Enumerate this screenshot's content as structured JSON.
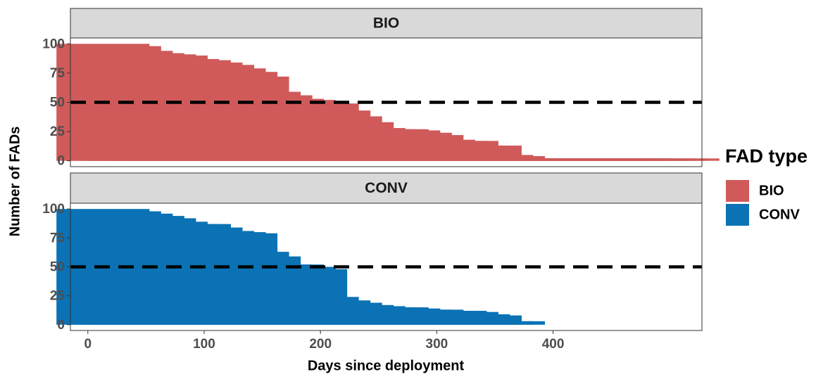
{
  "chart_data": {
    "type": "bar",
    "xlabel": "Days since deployment",
    "ylabel": "Number of FADs",
    "legend_title": "FAD type",
    "legend": "right",
    "xlim": [
      -15,
      528
    ],
    "xticks": [
      0,
      100,
      200,
      300,
      400
    ],
    "ylim": [
      -5,
      105
    ],
    "yticks": [
      0,
      25,
      50,
      75,
      100
    ],
    "hline": 50,
    "series": [
      {
        "name": "BIO",
        "color": "#d05a5a",
        "x": [
          13,
          23,
          33,
          43,
          53,
          63,
          73,
          83,
          93,
          103,
          113,
          123,
          133,
          143,
          153,
          163,
          173,
          183,
          193,
          203,
          213,
          223,
          233,
          243,
          253,
          263,
          273,
          283,
          293,
          303,
          313,
          323,
          333,
          343,
          353,
          363,
          373,
          383,
          393,
          403,
          413,
          423,
          433,
          443,
          453,
          463,
          473,
          483,
          493,
          503
        ],
        "values": [
          100,
          98,
          94,
          92,
          91,
          90,
          87,
          86,
          84,
          82,
          79,
          76,
          72,
          59,
          56,
          53,
          52,
          50,
          49,
          43,
          38,
          33,
          28,
          27,
          27,
          26,
          24,
          22,
          18,
          17,
          17,
          13,
          13,
          5,
          4,
          2,
          2,
          2,
          2,
          2,
          2,
          2,
          2,
          2,
          2,
          2,
          2,
          2,
          2,
          2
        ]
      },
      {
        "name": "CONV",
        "color": "#0a72b5",
        "x": [
          13,
          23,
          33,
          43,
          53,
          63,
          73,
          83,
          93,
          103,
          113,
          123,
          133,
          143,
          153,
          163,
          173,
          183,
          193,
          203,
          213,
          223,
          233,
          243,
          253,
          263,
          273,
          283,
          293,
          303,
          313,
          323,
          333,
          343,
          353
        ],
        "values": [
          100,
          98,
          96,
          94,
          92,
          89,
          87,
          87,
          84,
          81,
          80,
          79,
          63,
          59,
          52,
          52,
          50,
          48,
          24,
          21,
          19,
          17,
          16,
          15,
          15,
          14,
          13,
          13,
          12,
          12,
          11,
          9,
          8,
          3,
          3
        ]
      }
    ]
  }
}
